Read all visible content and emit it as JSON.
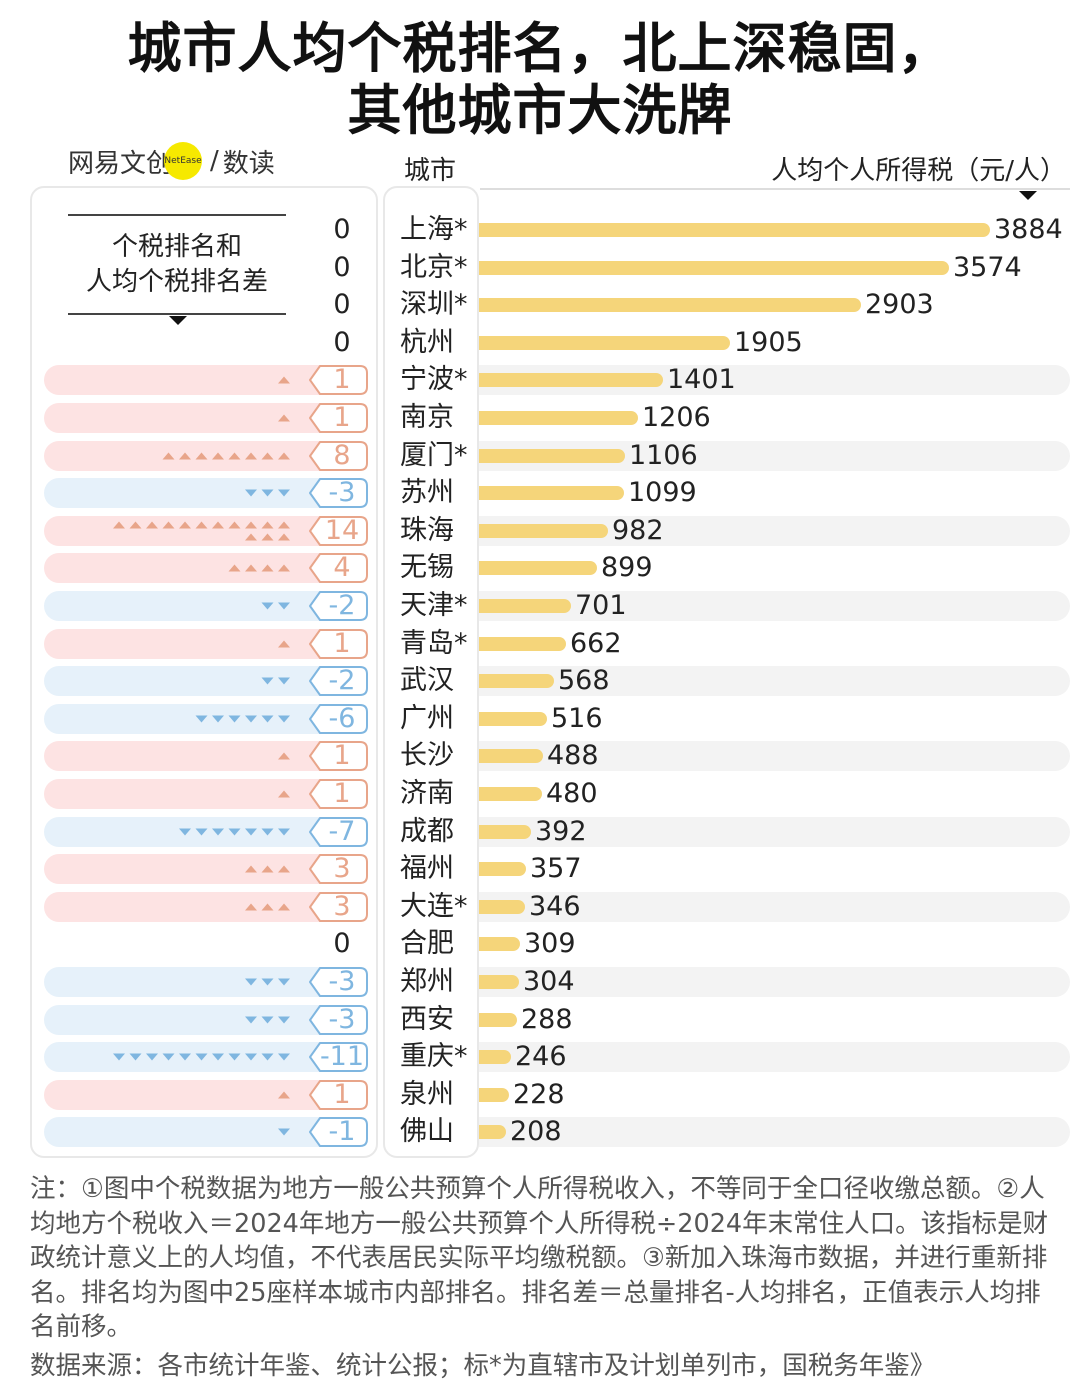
{
  "title_line1": "城市人均个税排名，北上深稳固，",
  "title_line2": "其他城市大洗牌",
  "brand": {
    "name": "网易文创",
    "logo_text": "NetEase",
    "sep": "/",
    "sub": "数读"
  },
  "header": {
    "city": "城市",
    "value": "人均个人所得税（元/人）"
  },
  "legend": {
    "line1": "个税排名和",
    "line2": "人均个税排名差"
  },
  "colors": {
    "bar": "#f5d57a",
    "up": "#e8a58a",
    "down": "#7fb6e0"
  },
  "chart_data": {
    "type": "bar",
    "title": "城市人均个税排名，北上深稳固，其他城市大洗牌",
    "xlabel": "人均个人所得税（元/人）",
    "ylabel": "城市",
    "xlim": [
      0,
      3884
    ],
    "categories": [
      "上海*",
      "北京*",
      "深圳*",
      "杭州",
      "宁波*",
      "南京",
      "厦门*",
      "苏州",
      "珠海",
      "无锡",
      "天津*",
      "青岛*",
      "武汉",
      "广州",
      "长沙",
      "济南",
      "成都",
      "福州",
      "大连*",
      "合肥",
      "郑州",
      "西安",
      "重庆*",
      "泉州",
      "佛山"
    ],
    "values": [
      3884,
      3574,
      2903,
      1905,
      1401,
      1206,
      1106,
      1099,
      982,
      899,
      701,
      662,
      568,
      516,
      488,
      480,
      392,
      357,
      346,
      309,
      304,
      288,
      246,
      228,
      208
    ],
    "value_labels": [
      "3884",
      "3574",
      "2903",
      "1905",
      "1401",
      "1206",
      "1106",
      "1099",
      "982",
      "899",
      "701",
      "662",
      "568",
      "516",
      "488",
      "480",
      "392",
      "357",
      "346",
      "309",
      "304",
      "288",
      "246",
      "228",
      "208"
    ],
    "rank_diff": [
      0,
      0,
      0,
      0,
      1,
      1,
      8,
      -3,
      14,
      4,
      -2,
      1,
      -2,
      -6,
      1,
      1,
      -7,
      3,
      3,
      0,
      -3,
      -3,
      -11,
      1,
      -1
    ],
    "rank_diff_labels": [
      "0",
      "0",
      "0",
      "0",
      "1",
      "1",
      "8",
      "-3",
      "14",
      "4",
      "-2",
      "1",
      "-2",
      "-6",
      "1",
      "1",
      "-7",
      "3",
      "3",
      "0",
      "-3",
      "-3",
      "-11",
      "1",
      "-1"
    ]
  },
  "notes": "注：①图中个税数据为地方一般公共预算个人所得税收入，不等同于全口径收缴总额。②人均地方个税收入＝2024年地方一般公共预算个人所得税÷2024年末常住人口。该指标是财政统计意义上的人均值，不代表居民实际平均缴税额。③新加入珠海市数据，并进行重新排名。排名均为图中25座样本城市内部排名。排名差＝总量排名-人均排名，正值表示人均排名前移。",
  "source": "数据来源：各市统计年鉴、统计公报；标*为直辖市及计划单列市，国税务年鉴》"
}
